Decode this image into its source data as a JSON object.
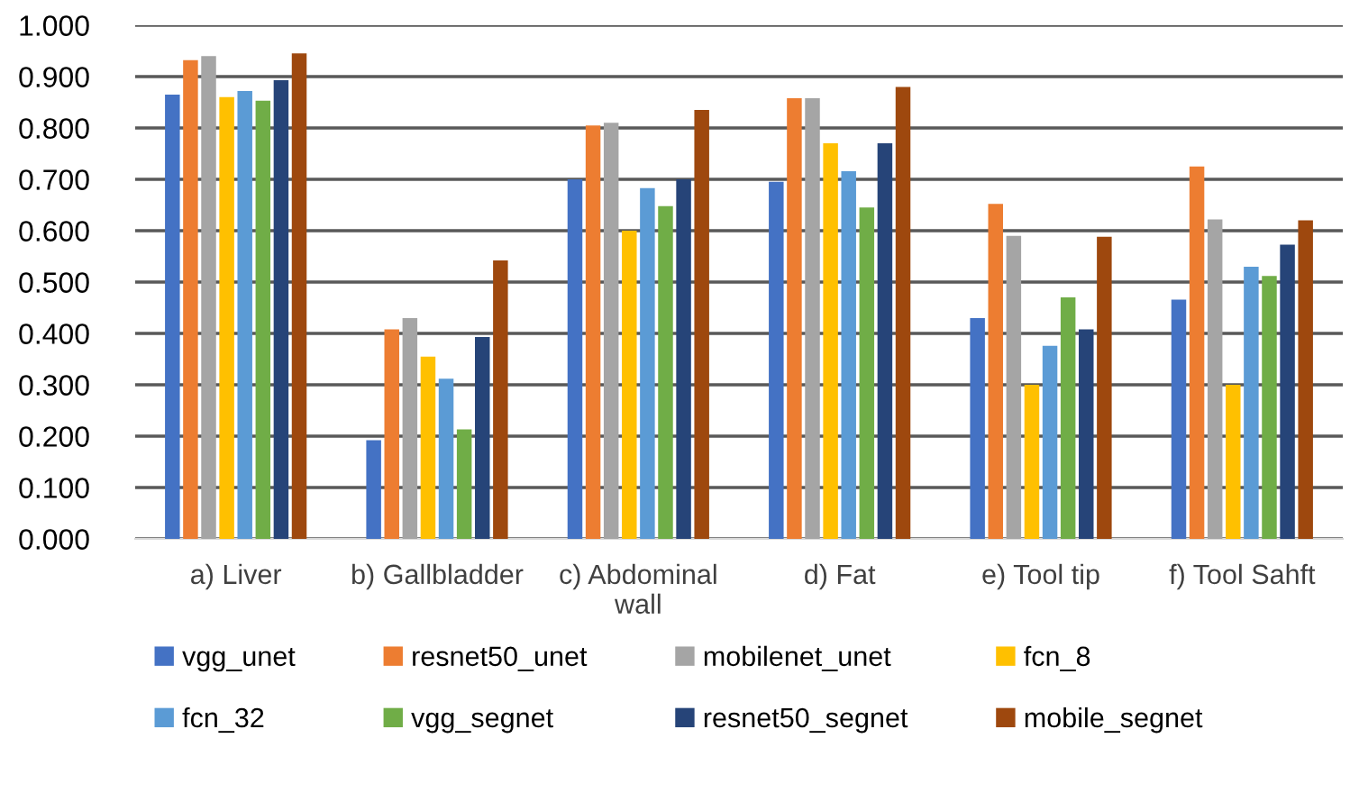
{
  "chart_data": {
    "type": "bar",
    "categories": [
      "a) Liver",
      "b) Gallbladder",
      "c) Abdominal wall",
      "d) Fat",
      "e) Tool tip",
      "f) Tool Sahft"
    ],
    "series": [
      {
        "name": "vgg_unet",
        "color": "#4472c4",
        "values": [
          0.865,
          0.192,
          0.7,
          0.695,
          0.43,
          0.466
        ]
      },
      {
        "name": "resnet50_unet",
        "color": "#ed7d31",
        "values": [
          0.932,
          0.408,
          0.805,
          0.858,
          0.652,
          0.725
        ]
      },
      {
        "name": "mobilenet_unet",
        "color": "#a5a5a5",
        "values": [
          0.94,
          0.43,
          0.81,
          0.858,
          0.59,
          0.622
        ]
      },
      {
        "name": "fcn_8",
        "color": "#ffc000",
        "values": [
          0.86,
          0.355,
          0.6,
          0.77,
          0.3,
          0.3
        ]
      },
      {
        "name": "fcn_32",
        "color": "#5b9bd5",
        "values": [
          0.872,
          0.312,
          0.683,
          0.716,
          0.376,
          0.53
        ]
      },
      {
        "name": "vgg_segnet",
        "color": "#70ad47",
        "values": [
          0.853,
          0.213,
          0.648,
          0.645,
          0.47,
          0.512
        ]
      },
      {
        "name": "resnet50_segnet",
        "color": "#264478",
        "values": [
          0.893,
          0.393,
          0.7,
          0.77,
          0.408,
          0.573
        ]
      },
      {
        "name": "mobile_segnet",
        "color": "#9e480e",
        "values": [
          0.945,
          0.542,
          0.835,
          0.88,
          0.588,
          0.62
        ]
      }
    ],
    "ylim": [
      0,
      1
    ],
    "yticks": [
      {
        "value": 0,
        "label": "0.000"
      },
      {
        "value": 0.1,
        "label": "0.100"
      },
      {
        "value": 0.2,
        "label": "0.200"
      },
      {
        "value": 0.3,
        "label": "0.300"
      },
      {
        "value": 0.4,
        "label": "0.400"
      },
      {
        "value": 0.5,
        "label": "0.500"
      },
      {
        "value": 0.6,
        "label": "0.600"
      },
      {
        "value": 0.7,
        "label": "0.700"
      },
      {
        "value": 0.8,
        "label": "0.800"
      },
      {
        "value": 0.9,
        "label": "0.900"
      },
      {
        "value": 1.0,
        "label": "1.000"
      }
    ],
    "grid": "y",
    "legend": "bottom"
  }
}
